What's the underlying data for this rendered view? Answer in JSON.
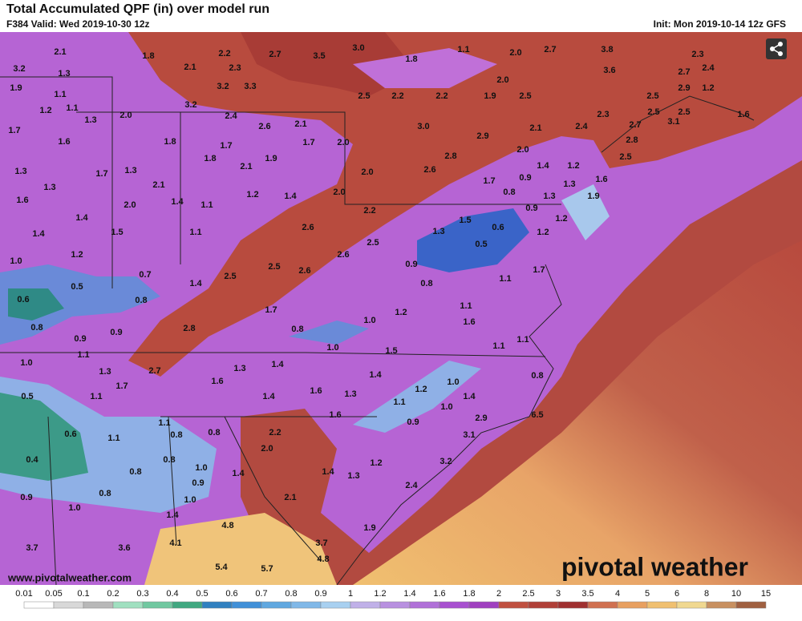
{
  "header": {
    "title": "Total Accumulated QPF (in) over model run",
    "valid": "F384 Valid: Wed 2019-10-30 12z",
    "init": "Init: Mon 2019-10-14 12z GFS"
  },
  "map": {
    "labels": [
      "2.1",
      "1.8",
      "2.2",
      "2.7",
      "3.5",
      "3.0",
      "1.8",
      "1.1",
      "2.0",
      "2.7",
      "3.8",
      "2.3",
      "3.2",
      "1.3",
      "2.1",
      "2.3",
      "2.0",
      "3.6",
      "2.7",
      "2.4",
      "1.9",
      "1.1",
      "3.2",
      "3.3",
      "2.5",
      "2.2",
      "2.2",
      "1.9",
      "2.5",
      "2.5",
      "2.9",
      "1.2",
      "1.2",
      "1.1",
      "3.2",
      "2.5",
      "2.5",
      "1.3",
      "2.0",
      "2.4",
      "2.3",
      "1.6",
      "1.7",
      "2.6",
      "2.1",
      "3.0",
      "2.9",
      "2.1",
      "2.4",
      "2.7",
      "3.1",
      "1.6",
      "1.8",
      "1.7",
      "1.7",
      "2.0",
      "2.0",
      "2.8",
      "1.8",
      "1.9",
      "2.8",
      "1.4",
      "1.2",
      "2.5",
      "1.3",
      "1.7",
      "1.3",
      "2.1",
      "2.0",
      "2.6",
      "1.7",
      "0.9",
      "1.3",
      "1.6",
      "1.3",
      "2.1",
      "1.2",
      "1.4",
      "2.0",
      "0.8",
      "1.3",
      "1.9",
      "1.6",
      "2.0",
      "1.4",
      "1.1",
      "2.2",
      "0.9",
      "1.2",
      "1.4",
      "1.5",
      "0.6",
      "1.2",
      "1.4",
      "1.5",
      "1.1",
      "2.6",
      "2.5",
      "1.3",
      "1.2",
      "2.6",
      "0.5",
      "1.0",
      "0.9",
      "2.5",
      "2.6",
      "0.7",
      "2.5",
      "1.7",
      "0.5",
      "1.4",
      "0.8",
      "1.1",
      "0.6",
      "0.8",
      "1.7",
      "1.2",
      "1.1",
      "0.8",
      "0.9",
      "0.9",
      "2.8",
      "0.8",
      "1.0",
      "1.6",
      "1.0",
      "1.5",
      "1.1",
      "1.1",
      "1.1",
      "1.4",
      "1.0",
      "1.3",
      "2.7",
      "1.6",
      "1.3",
      "1.4",
      "1.0",
      "0.8",
      "1.7",
      "1.4",
      "1.6",
      "1.3",
      "1.2",
      "1.4",
      "0.5",
      "1.1",
      "1.1",
      "1.0",
      "2.9",
      "6.5",
      "1.6",
      "0.9",
      "1.1",
      "2.2",
      "0.6",
      "1.1",
      "0.8",
      "0.8",
      "2.0",
      "3.1",
      "0.4",
      "0.8",
      "1.0",
      "1.2",
      "3.2",
      "0.8",
      "0.9",
      "1.4",
      "1.4",
      "1.3",
      "0.8",
      "1.0",
      "2.4",
      "0.9",
      "2.1",
      "1.0",
      "1.4",
      "4.8",
      "1.9",
      "3.7",
      "3.6",
      "4.1",
      "3.7",
      "4.8",
      "5.4",
      "5.7"
    ],
    "website": "www.pivotalweather.com",
    "logo": "pivotal weather"
  },
  "colorbar": {
    "labels": [
      "0.01",
      "0.05",
      "0.1",
      "0.2",
      "0.3",
      "0.4",
      "0.5",
      "0.6",
      "0.7",
      "0.8",
      "0.9",
      "1",
      "1.2",
      "1.4",
      "1.6",
      "1.8",
      "2",
      "2.5",
      "3",
      "3.5",
      "4",
      "5",
      "6",
      "8",
      "10",
      "15"
    ]
  }
}
